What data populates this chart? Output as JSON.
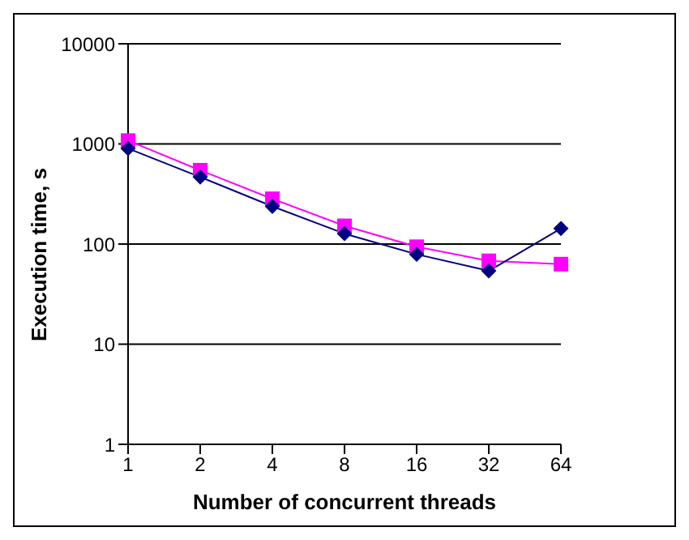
{
  "chart_data": {
    "type": "line",
    "xlabel": "Number of concurrent threads",
    "ylabel": "Execution time, s",
    "categories": [
      "1",
      "2",
      "4",
      "8",
      "16",
      "32",
      "64"
    ],
    "series": [
      {
        "color": "#000080",
        "marker": "diamond",
        "values": [
          900,
          467,
          238,
          127,
          79,
          54,
          143
        ]
      },
      {
        "color": "#ff00ff",
        "marker": "square",
        "values": [
          1080,
          546,
          283,
          152,
          94,
          68,
          63
        ]
      }
    ],
    "log": "y",
    "ylim": [
      1,
      10000
    ],
    "yticks": [
      1,
      10,
      100,
      1000,
      10000
    ],
    "grid": "y",
    "legend": false
  }
}
